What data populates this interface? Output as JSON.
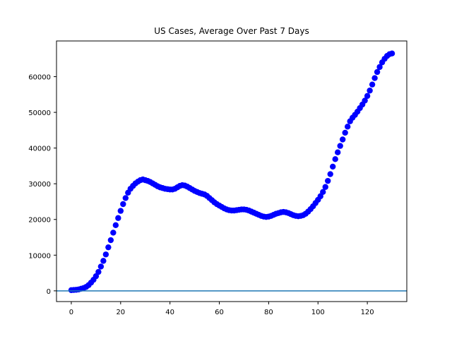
{
  "chart_data": {
    "type": "scatter",
    "title": "US Cases, Average Over Past 7 Days",
    "xlabel": "",
    "ylabel": "",
    "xlim": [
      -6,
      136
    ],
    "ylim": [
      -3000,
      70000
    ],
    "x_ticks": [
      0,
      20,
      40,
      60,
      80,
      100,
      120
    ],
    "y_ticks": [
      0,
      10000,
      20000,
      30000,
      40000,
      50000,
      60000
    ],
    "grid": false,
    "point_color": "#0000ff",
    "baseline": {
      "y": 0,
      "color": "#1f77b4"
    },
    "series": [
      {
        "x": [
          0,
          1,
          2,
          3,
          4,
          5,
          6,
          7,
          8,
          9,
          10,
          11,
          12,
          13,
          14,
          15,
          16,
          17,
          18,
          19,
          20,
          21,
          22,
          23,
          24,
          25,
          26,
          27,
          28,
          29,
          30,
          31,
          32,
          33,
          34,
          35,
          36,
          37,
          38,
          39,
          40,
          41,
          42,
          43,
          44,
          45,
          46,
          47,
          48,
          49,
          50,
          51,
          52,
          53,
          54,
          55,
          56,
          57,
          58,
          59,
          60,
          61,
          62,
          63,
          64,
          65,
          66,
          67,
          68,
          69,
          70,
          71,
          72,
          73,
          74,
          75,
          76,
          77,
          78,
          79,
          80,
          81,
          82,
          83,
          84,
          85,
          86,
          87,
          88,
          89,
          90,
          91,
          92,
          93,
          94,
          95,
          96,
          97,
          98,
          99,
          100,
          101,
          102,
          103,
          104,
          105,
          106,
          107,
          108,
          109,
          110,
          111,
          112,
          113,
          114,
          115,
          116,
          117,
          118,
          119,
          120,
          121,
          122,
          123,
          124,
          125,
          126,
          127,
          128,
          129,
          130
        ],
        "y": [
          200,
          250,
          300,
          400,
          600,
          800,
          1100,
          1600,
          2300,
          3100,
          4100,
          5300,
          6800,
          8400,
          10200,
          12200,
          14200,
          16300,
          18400,
          20400,
          22400,
          24300,
          26000,
          27500,
          28600,
          29400,
          30100,
          30600,
          31000,
          31200,
          31000,
          30800,
          30500,
          30100,
          29700,
          29300,
          29000,
          28800,
          28600,
          28500,
          28400,
          28400,
          28600,
          29000,
          29400,
          29600,
          29500,
          29200,
          28800,
          28400,
          28000,
          27700,
          27400,
          27200,
          27000,
          26600,
          26000,
          25400,
          24800,
          24300,
          23900,
          23500,
          23100,
          22800,
          22600,
          22500,
          22500,
          22600,
          22700,
          22800,
          22800,
          22700,
          22500,
          22200,
          21900,
          21600,
          21300,
          21000,
          20800,
          20700,
          20800,
          21000,
          21300,
          21600,
          21800,
          22000,
          22100,
          22000,
          21800,
          21500,
          21200,
          21000,
          20900,
          21000,
          21200,
          21600,
          22200,
          22900,
          23700,
          24600,
          25500,
          26500,
          27700,
          29100,
          30800,
          32700,
          34800,
          36900,
          38800,
          40600,
          42400,
          44300,
          46000,
          47500,
          48500,
          49300,
          50200,
          51200,
          52200,
          53300,
          54600,
          56100,
          57800,
          59600,
          61300,
          62700,
          64000,
          65000,
          65800,
          66300,
          66500
        ]
      }
    ]
  }
}
